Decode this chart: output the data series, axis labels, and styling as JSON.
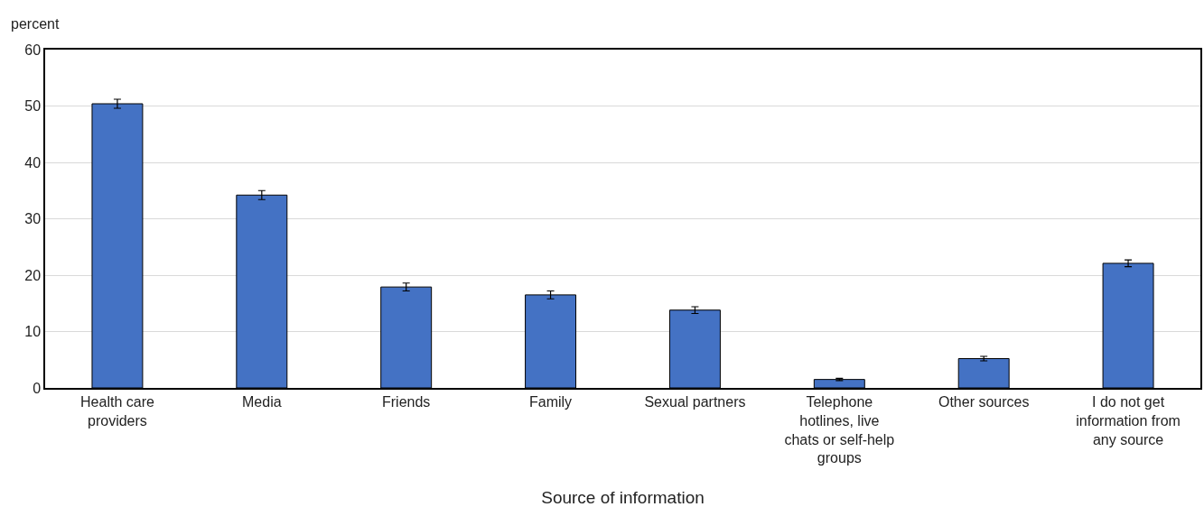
{
  "chart_data": {
    "type": "bar",
    "ylabel": "percent",
    "xlabel": "Source of information",
    "categories": [
      "Health care providers",
      "Media",
      "Friends",
      "Family",
      "Sexual partners",
      "Telephone hotlines, live chats or self-help groups",
      "Other sources",
      "I do not get information from any source"
    ],
    "values": [
      50.4,
      34.2,
      17.9,
      16.5,
      13.8,
      1.5,
      5.2,
      22.1
    ],
    "errors": [
      0.8,
      0.8,
      0.7,
      0.7,
      0.6,
      0.2,
      0.4,
      0.6
    ],
    "color": "#4472c4",
    "ylim": [
      0,
      60
    ],
    "yticks": [
      0,
      10,
      20,
      30,
      40,
      50,
      60
    ],
    "grid": "y"
  }
}
